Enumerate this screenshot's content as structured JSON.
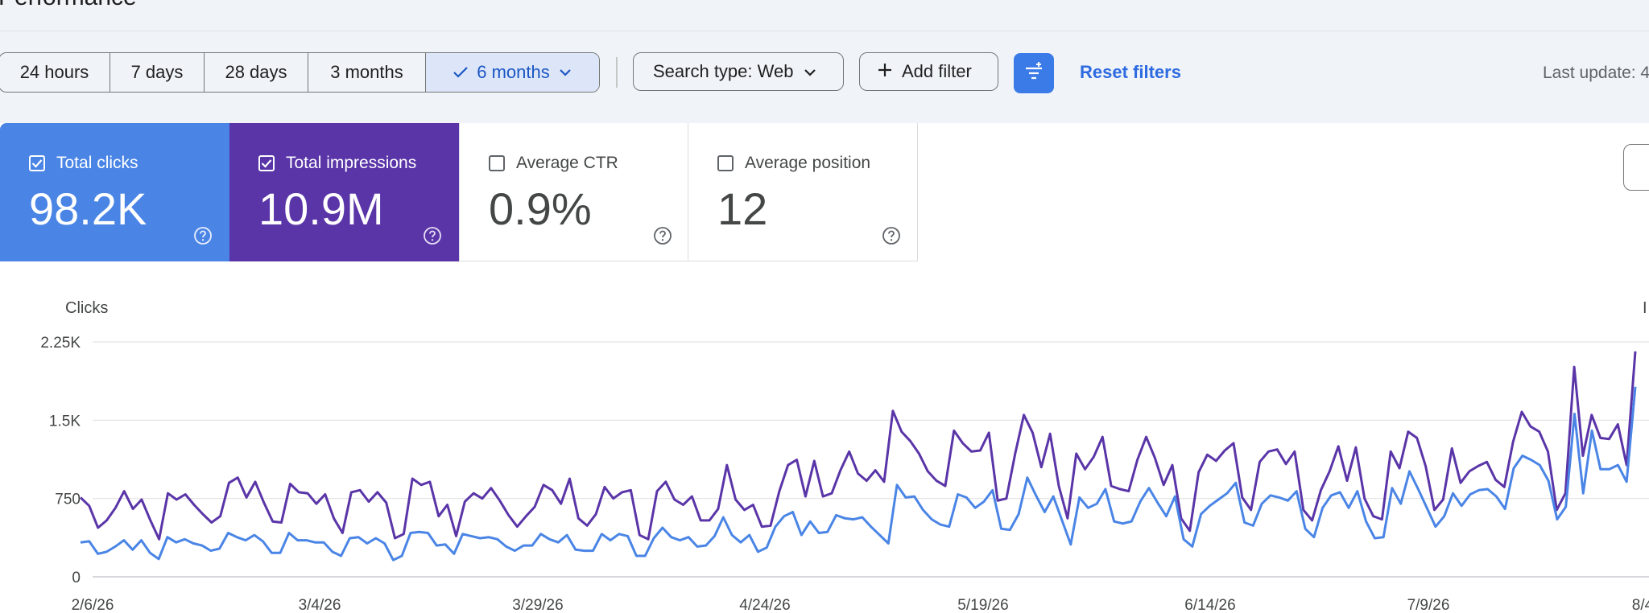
{
  "page": {
    "title": "Performance"
  },
  "toolbar": {
    "date_ranges": [
      {
        "label": "24 hours",
        "active": false
      },
      {
        "label": "7 days",
        "active": false
      },
      {
        "label": "28 days",
        "active": false
      },
      {
        "label": "3 months",
        "active": false
      },
      {
        "label": "6 months",
        "active": true
      }
    ],
    "search_type_label": "Search type: Web",
    "add_filter_label": "Add filter",
    "reset_filters_label": "Reset filters",
    "last_update_label": "Last update: 4"
  },
  "metrics": [
    {
      "label": "Total clicks",
      "value": "98.2K",
      "checked": true,
      "color": "#4a85e6"
    },
    {
      "label": "Total impressions",
      "value": "10.9M",
      "checked": true,
      "color": "#5a35a8"
    },
    {
      "label": "Average CTR",
      "value": "0.9%",
      "checked": false,
      "color": "#ffffff"
    },
    {
      "label": "Average position",
      "value": "12",
      "checked": false,
      "color": "#ffffff"
    }
  ],
  "colors": {
    "accent": "#3b7be8",
    "clicks": "#4a85e6",
    "impressions": "#5a35a8"
  },
  "chart_data": {
    "type": "line",
    "ylabel": "Clicks",
    "right_axis_label": "I",
    "y_ticks": [
      "0",
      "750",
      "1.5K",
      "2.25K"
    ],
    "ylim": [
      0,
      2250
    ],
    "grid": true,
    "x_tick_labels": [
      "2/6/26",
      "3/4/26",
      "3/29/26",
      "4/24/26",
      "5/19/26",
      "6/14/26",
      "7/9/26",
      "8/4"
    ],
    "series": [
      {
        "name": "Total impressions",
        "color": "#5a35a8",
        "values": [
          760,
          680,
          470,
          540,
          660,
          820,
          650,
          740,
          540,
          360,
          800,
          740,
          790,
          690,
          600,
          520,
          580,
          900,
          950,
          760,
          910,
          710,
          530,
          520,
          890,
          810,
          800,
          700,
          790,
          560,
          420,
          810,
          830,
          720,
          810,
          710,
          370,
          410,
          940,
          880,
          910,
          580,
          690,
          390,
          720,
          800,
          750,
          850,
          730,
          590,
          480,
          580,
          670,
          880,
          830,
          700,
          940,
          560,
          490,
          600,
          860,
          750,
          810,
          830,
          400,
          360,
          820,
          910,
          740,
          690,
          770,
          540,
          540,
          650,
          1070,
          740,
          640,
          690,
          480,
          490,
          820,
          1070,
          1120,
          770,
          1110,
          770,
          800,
          1020,
          1200,
          990,
          920,
          1020,
          910,
          1590,
          1390,
          1300,
          1180,
          1010,
          920,
          870,
          1400,
          1280,
          1200,
          1210,
          1380,
          730,
          750,
          1180,
          1550,
          1380,
          1050,
          1370,
          870,
          560,
          1180,
          1030,
          1150,
          1340,
          870,
          840,
          820,
          1120,
          1340,
          1140,
          880,
          1070,
          560,
          440,
          1000,
          1170,
          1110,
          1210,
          1280,
          760,
          640,
          1100,
          1200,
          1220,
          1080,
          1200,
          640,
          540,
          830,
          1010,
          1250,
          920,
          1240,
          750,
          580,
          550,
          1200,
          1040,
          1390,
          1330,
          1060,
          640,
          740,
          1230,
          900,
          1010,
          1060,
          1100,
          930,
          860,
          1290,
          1580,
          1440,
          1390,
          1200,
          640,
          800,
          2010,
          1160,
          1550,
          1330,
          1320,
          1460,
          1070,
          2160
        ]
      },
      {
        "name": "Total clicks",
        "color": "#4a85e6",
        "values": [
          330,
          340,
          220,
          240,
          290,
          350,
          260,
          350,
          230,
          170,
          380,
          330,
          360,
          320,
          300,
          250,
          270,
          420,
          380,
          350,
          400,
          340,
          230,
          230,
          420,
          350,
          350,
          330,
          330,
          240,
          200,
          370,
          380,
          320,
          370,
          320,
          160,
          200,
          420,
          430,
          420,
          300,
          310,
          220,
          410,
          390,
          370,
          380,
          360,
          290,
          250,
          300,
          300,
          410,
          360,
          330,
          400,
          260,
          250,
          250,
          410,
          350,
          410,
          390,
          200,
          200,
          370,
          470,
          380,
          350,
          380,
          290,
          300,
          390,
          570,
          400,
          330,
          400,
          240,
          280,
          480,
          580,
          620,
          400,
          530,
          420,
          430,
          590,
          560,
          550,
          570,
          480,
          400,
          320,
          880,
          760,
          770,
          640,
          550,
          500,
          480,
          790,
          760,
          660,
          720,
          830,
          460,
          450,
          600,
          950,
          780,
          620,
          770,
          540,
          310,
          760,
          660,
          700,
          840,
          530,
          510,
          530,
          720,
          850,
          710,
          580,
          770,
          360,
          290,
          600,
          680,
          740,
          800,
          900,
          520,
          490,
          700,
          780,
          760,
          730,
          820,
          460,
          380,
          660,
          780,
          810,
          660,
          820,
          530,
          370,
          380,
          850,
          700,
          1010,
          840,
          660,
          480,
          580,
          800,
          680,
          790,
          830,
          840,
          770,
          650,
          1040,
          1160,
          1120,
          1070,
          920,
          550,
          670,
          1560,
          800,
          1400,
          1030,
          1030,
          1070,
          910,
          1820
        ]
      }
    ]
  }
}
